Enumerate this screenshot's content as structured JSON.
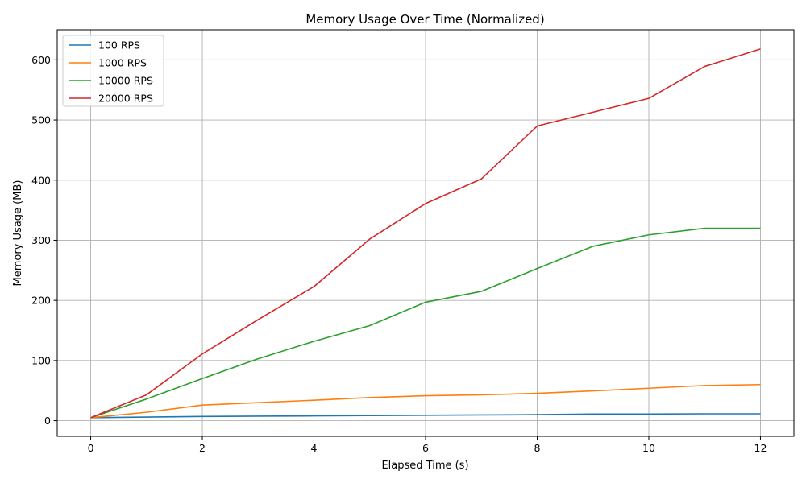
{
  "chart_data": {
    "type": "line",
    "title": "Memory Usage Over Time (Normalized)",
    "xlabel": "Elapsed Time (s)",
    "ylabel": "Memory Usage (MB)",
    "xlim": [
      -0.6,
      12.6
    ],
    "ylim": [
      -26,
      650
    ],
    "xticks": [
      0,
      2,
      4,
      6,
      8,
      10,
      12
    ],
    "yticks": [
      0,
      100,
      200,
      300,
      400,
      500,
      600
    ],
    "grid": true,
    "legend_position": "top-left",
    "x": [
      0,
      1,
      2,
      3,
      4,
      5,
      6,
      7,
      8,
      9,
      10,
      11,
      12
    ],
    "series": [
      {
        "name": "100 RPS",
        "color": "#1f77b4",
        "values": [
          5,
          6,
          7,
          7.5,
          8,
          8.5,
          9,
          9.5,
          10,
          11,
          11,
          11.5,
          11.5
        ]
      },
      {
        "name": "1000 RPS",
        "color": "#ff7f0e",
        "values": [
          5,
          14,
          26,
          30,
          34,
          38.5,
          41.5,
          43,
          45.5,
          49.5,
          54,
          58.5,
          60
        ]
      },
      {
        "name": "10000 RPS",
        "color": "#2ca02c",
        "values": [
          5,
          36,
          70,
          103,
          132,
          158,
          197,
          215,
          253,
          290,
          309,
          320,
          320
        ]
      },
      {
        "name": "20000 RPS",
        "color": "#d62728",
        "values": [
          5,
          43,
          111,
          168,
          223,
          302,
          361,
          402,
          490,
          513,
          536,
          589,
          618
        ]
      }
    ]
  }
}
